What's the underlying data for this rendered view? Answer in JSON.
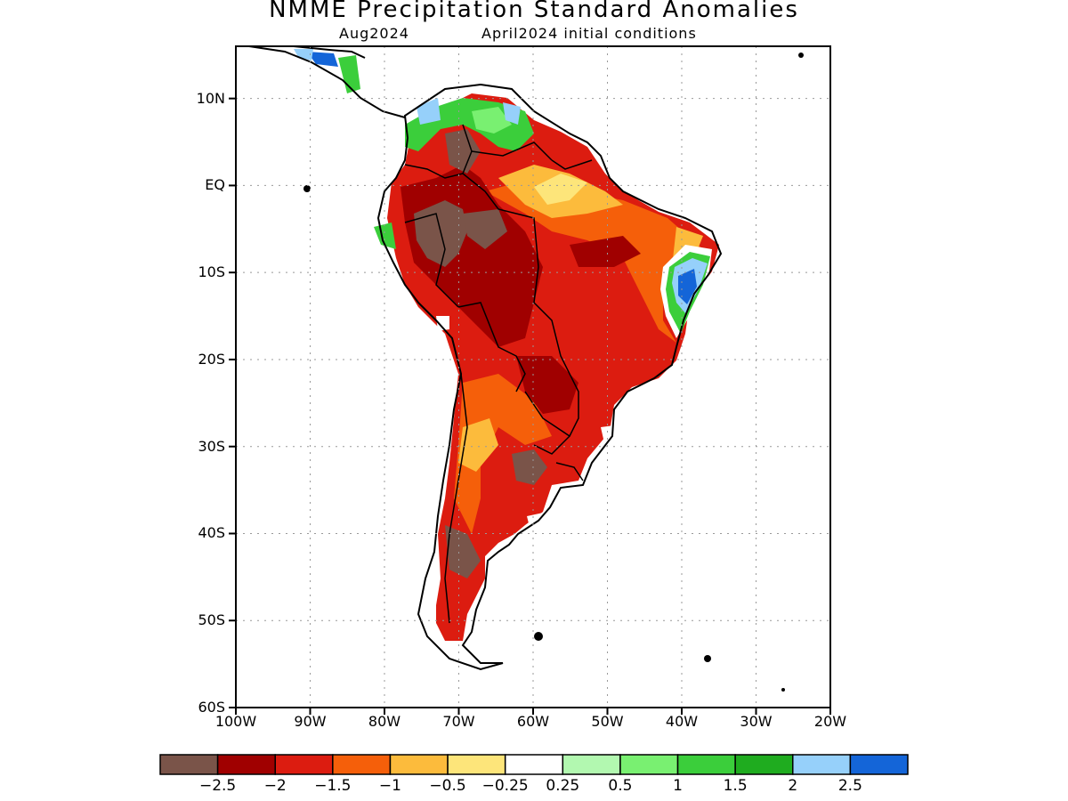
{
  "title": "NMME Precipitation Standard Anomalies",
  "subtitle_left": "Aug2024",
  "subtitle_right": "April2024 initial conditions",
  "axes": {
    "lat_labels": [
      "10N",
      "EQ",
      "10S",
      "20S",
      "30S",
      "40S",
      "50S",
      "60S"
    ],
    "lon_labels": [
      "100W",
      "90W",
      "80W",
      "70W",
      "60W",
      "50W",
      "40W",
      "30W",
      "20W"
    ],
    "lon_range": [
      -100,
      -20
    ],
    "lat_range": [
      -60,
      16
    ],
    "grid": "dotted"
  },
  "colorbar": {
    "colors": [
      "#7a5449",
      "#a00000",
      "#dc1c10",
      "#f55f0a",
      "#fcbb3c",
      "#fde57a",
      "#ffffff",
      "#b2f8b0",
      "#79f071",
      "#3bce3b",
      "#1fac1f",
      "#96d0fa",
      "#1465d8"
    ],
    "labels": [
      "−2.5",
      "−2",
      "−1.5",
      "−1",
      "−0.5",
      "−0.25",
      "0.25",
      "0.5",
      "1",
      "1.5",
      "2",
      "2.5"
    ]
  },
  "map_regions": {
    "continent_fill": "#dc1c10",
    "regions": [
      {
        "name": "Amazon west",
        "category": "-2.5",
        "color": "#7a5449"
      },
      {
        "name": "Bolivia lowlands",
        "category": "-2",
        "color": "#a00000"
      },
      {
        "name": "Argentina center",
        "category": "-2.5",
        "color": "#7a5449"
      },
      {
        "name": "NE Brazil coast",
        "category": "2.5",
        "color": "#1465d8"
      },
      {
        "name": "Colombia/Venezuela north",
        "category": "1.5",
        "color": "#3bce3b"
      }
    ]
  }
}
